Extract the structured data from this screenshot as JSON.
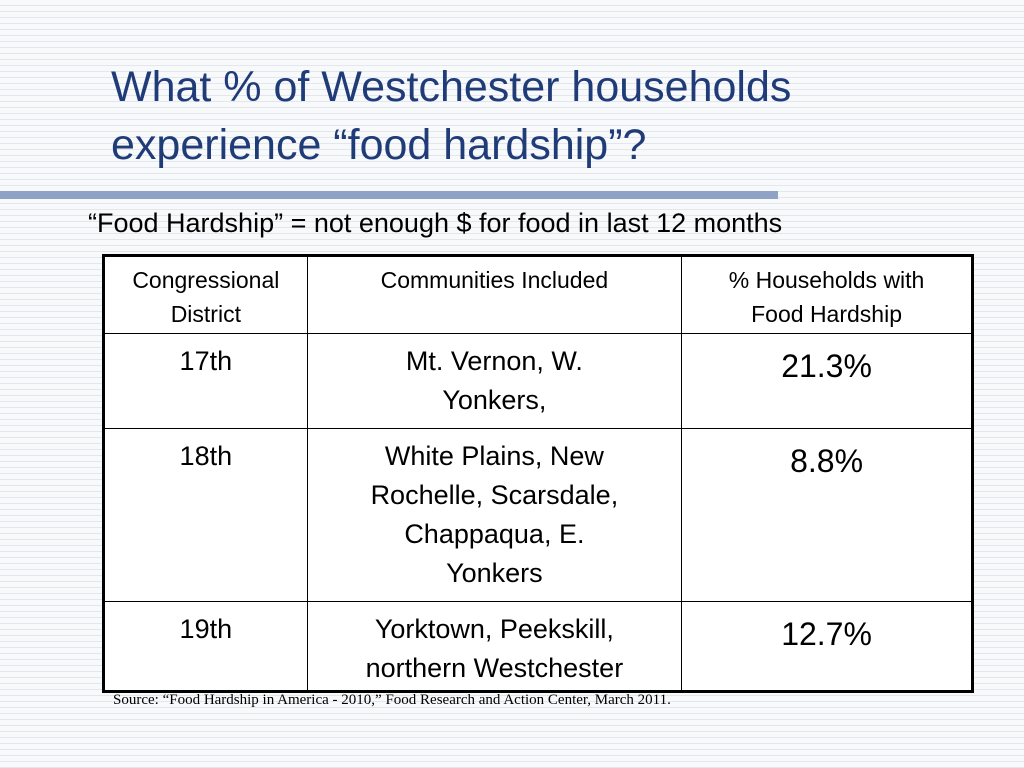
{
  "slide": {
    "title_line1": "What % of Westchester households",
    "title_line2": "experience “food hardship”?",
    "definition": "“Food Hardship” = not enough $ for food in last 12 months",
    "source": "Source: “Food Hardship in America - 2010,” Food Research and Action Center, March 2011."
  },
  "table": {
    "headers": {
      "district_line1": "Congressional",
      "district_line2": "District",
      "communities": "Communities Included",
      "percent_line1": "% Households with",
      "percent_line2": "Food Hardship"
    },
    "rows": [
      {
        "district": "17th",
        "communities_lines": [
          "Mt. Vernon, W.",
          "Yonkers,"
        ],
        "percent": "21.3%"
      },
      {
        "district": "18th",
        "communities_lines": [
          "White Plains, New",
          "Rochelle, Scarsdale,",
          "Chappaqua, E.",
          "Yonkers"
        ],
        "percent": "8.8%"
      },
      {
        "district": "19th",
        "communities_lines": [
          "Yorktown, Peekskill,",
          "northern Westchester"
        ],
        "percent": "12.7%"
      }
    ]
  },
  "colors": {
    "title": "#1f3c78",
    "rule": "#8ea3c6",
    "background": "#f6f7fa"
  }
}
